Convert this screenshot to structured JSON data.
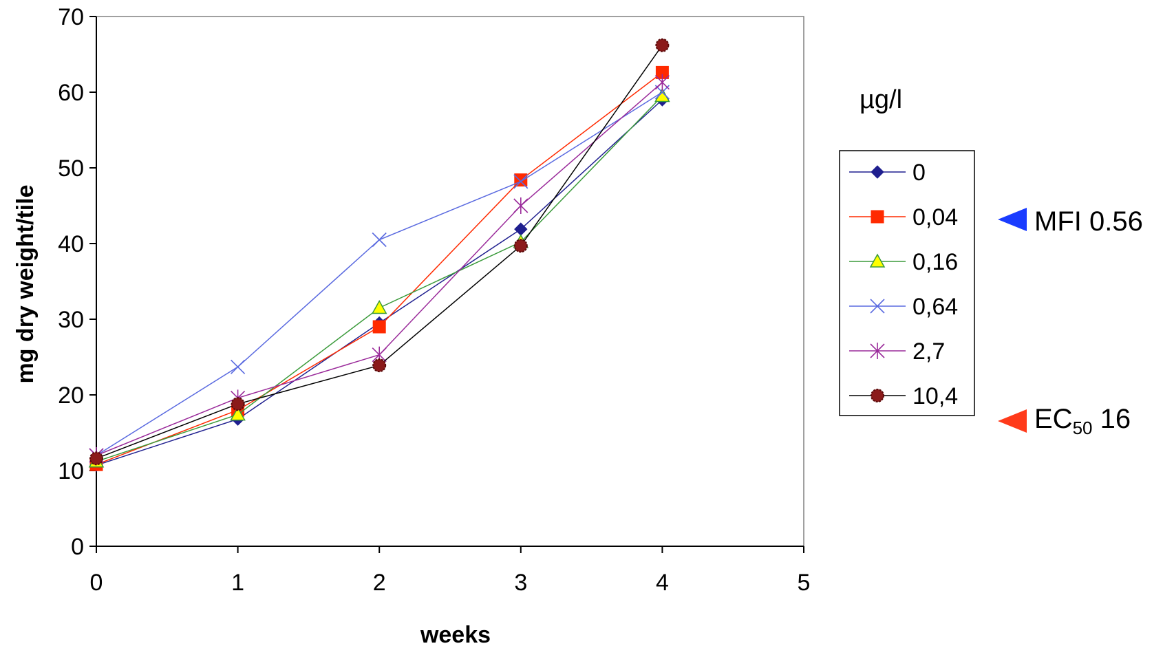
{
  "chart_data": {
    "type": "line",
    "title": "",
    "xlabel": "weeks",
    "ylabel": "mg dry weight/tile",
    "xlim": [
      0,
      5
    ],
    "ylim": [
      0,
      70
    ],
    "x_ticks": [
      "0",
      "1",
      "2",
      "3",
      "4",
      "5"
    ],
    "y_ticks": [
      "0",
      "10",
      "20",
      "30",
      "40",
      "50",
      "60",
      "70"
    ],
    "grid": false,
    "legend_title": "µg/l",
    "legend_position": "right",
    "x": [
      0,
      1,
      2,
      3,
      4
    ],
    "series": [
      {
        "name": "0",
        "color": "#1f1f8f",
        "marker": "diamond",
        "values": [
          10.7,
          16.8,
          29.5,
          41.9,
          59.0
        ]
      },
      {
        "name": "0,04",
        "color": "#ff2a00",
        "marker": "square",
        "values": [
          10.8,
          18.0,
          29.0,
          48.4,
          62.6
        ]
      },
      {
        "name": "0,16",
        "color": "#3a9a3a",
        "marker": "triangle",
        "fill": "#ffff00",
        "values": [
          11.2,
          17.4,
          31.5,
          40.2,
          59.5
        ]
      },
      {
        "name": "0,64",
        "color": "#5a6ae0",
        "marker": "x",
        "values": [
          12.0,
          23.7,
          40.5,
          48.2,
          60.0
        ]
      },
      {
        "name": "2,7",
        "color": "#9a2a9a",
        "marker": "star",
        "values": [
          12.0,
          19.6,
          25.3,
          45.0,
          61.3
        ]
      },
      {
        "name": "10,4",
        "color": "#000000",
        "marker": "circle",
        "fill": "#8b1a1a",
        "values": [
          11.6,
          18.8,
          23.9,
          39.7,
          66.2
        ]
      }
    ],
    "annotations": [
      {
        "text": "MFI 0.56",
        "color": "#1a3cff"
      },
      {
        "text_main": "EC",
        "text_sub": "50",
        "text_tail": " 16",
        "color": "#ff3a1a"
      }
    ]
  }
}
